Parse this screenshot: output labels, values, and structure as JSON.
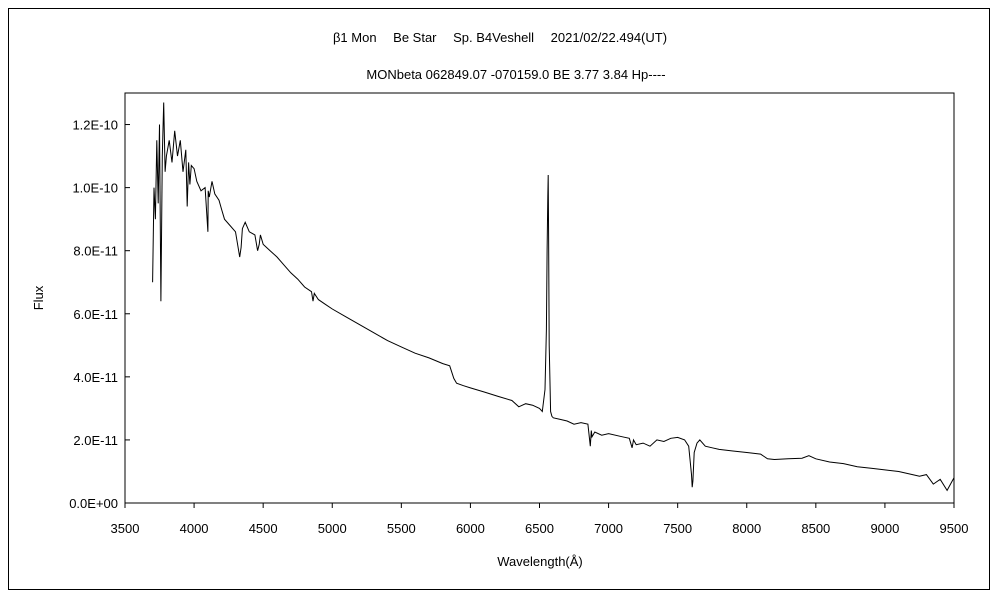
{
  "chart_data": {
    "type": "line",
    "title": "β1 Mon　 Be Star　 Sp. B4Veshell　 2021/02/22.494(UT)",
    "subtitle": "MONbeta 062849.07 -070159.0 BE 3.77 3.84 Hp----",
    "xlabel": "Wavelength(Å)",
    "ylabel": "Flux",
    "xlim": [
      3500,
      9500
    ],
    "ylim": [
      0,
      1.3e-10
    ],
    "x_ticks": [
      "3500",
      "4000",
      "4500",
      "5000",
      "5500",
      "6000",
      "6500",
      "7000",
      "7500",
      "8000",
      "8500",
      "9000",
      "9500"
    ],
    "y_ticks": [
      "0.0E+00",
      "2.0E-11",
      "4.0E-11",
      "6.0E-11",
      "8.0E-11",
      "1.0E-10",
      "1.2E-10"
    ],
    "grid": false,
    "series": [
      {
        "color": "#000000",
        "x": [
          3700,
          3710,
          3720,
          3730,
          3740,
          3750,
          3760,
          3770,
          3780,
          3790,
          3800,
          3820,
          3840,
          3860,
          3880,
          3900,
          3920,
          3940,
          3950,
          3960,
          3970,
          3980,
          4000,
          4020,
          4050,
          4080,
          4100,
          4102,
          4110,
          4130,
          4150,
          4180,
          4200,
          4220,
          4260,
          4300,
          4330,
          4340,
          4350,
          4370,
          4400,
          4440,
          4460,
          4471,
          4480,
          4500,
          4550,
          4600,
          4650,
          4700,
          4750,
          4800,
          4850,
          4861,
          4870,
          4900,
          4950,
          5000,
          5100,
          5200,
          5300,
          5400,
          5500,
          5600,
          5700,
          5800,
          5850,
          5880,
          5900,
          5950,
          6000,
          6100,
          6200,
          6300,
          6350,
          6400,
          6450,
          6500,
          6520,
          6540,
          6550,
          6555,
          6560,
          6563,
          6566,
          6570,
          6580,
          6590,
          6600,
          6650,
          6700,
          6750,
          6800,
          6850,
          6868,
          6875,
          6880,
          6900,
          6950,
          7000,
          7100,
          7150,
          7170,
          7180,
          7200,
          7250,
          7300,
          7350,
          7400,
          7450,
          7500,
          7550,
          7580,
          7600,
          7605,
          7610,
          7620,
          7640,
          7660,
          7700,
          7750,
          7800,
          7900,
          8000,
          8100,
          8150,
          8200,
          8300,
          8400,
          8450,
          8500,
          8600,
          8700,
          8800,
          8900,
          9000,
          9100,
          9200,
          9250,
          9300,
          9350,
          9400,
          9450,
          9500
        ],
        "y": [
          7e-11,
          1e-10,
          9e-11,
          1.15e-10,
          9.5e-11,
          1.2e-10,
          6.4e-11,
          1.1e-10,
          1.27e-10,
          1.05e-10,
          1.1e-10,
          1.15e-10,
          1.08e-10,
          1.18e-10,
          1.1e-10,
          1.15e-10,
          1.05e-10,
          1.12e-10,
          9.4e-11,
          1.08e-10,
          1.01e-10,
          1.07e-10,
          1.06e-10,
          1.02e-10,
          9.9e-11,
          1e-10,
          8.6e-11,
          9.9e-11,
          9.7e-11,
          1.02e-10,
          9.8e-11,
          9.6e-11,
          9.3e-11,
          9e-11,
          8.8e-11,
          8.6e-11,
          7.8e-11,
          8.1e-11,
          8.7e-11,
          8.9e-11,
          8.6e-11,
          8.5e-11,
          8e-11,
          8.2e-11,
          8.5e-11,
          8.2e-11,
          8e-11,
          7.8e-11,
          7.55e-11,
          7.3e-11,
          7.1e-11,
          6.85e-11,
          6.7e-11,
          6.4e-11,
          6.65e-11,
          6.45e-11,
          6.3e-11,
          6.15e-11,
          5.9e-11,
          5.65e-11,
          5.4e-11,
          5.15e-11,
          4.95e-11,
          4.75e-11,
          4.6e-11,
          4.42e-11,
          4.35e-11,
          3.95e-11,
          3.8e-11,
          3.72e-11,
          3.65e-11,
          3.52e-11,
          3.38e-11,
          3.25e-11,
          3.05e-11,
          3.15e-11,
          3.1e-11,
          3e-11,
          2.9e-11,
          3.6e-11,
          5.5e-11,
          8e-11,
          9.7e-11,
          1.04e-10,
          8.5e-11,
          5e-11,
          2.9e-11,
          2.75e-11,
          2.7e-11,
          2.65e-11,
          2.6e-11,
          2.5e-11,
          2.55e-11,
          2.5e-11,
          1.8e-11,
          2.3e-11,
          2.1e-11,
          2.25e-11,
          2.15e-11,
          2.2e-11,
          2.1e-11,
          2.05e-11,
          1.75e-11,
          2e-11,
          1.85e-11,
          1.9e-11,
          1.8e-11,
          2e-11,
          1.95e-11,
          2.05e-11,
          2.08e-11,
          2e-11,
          1.8e-11,
          9e-12,
          5e-12,
          7e-12,
          1.6e-11,
          1.9e-11,
          2e-11,
          1.8e-11,
          1.75e-11,
          1.7e-11,
          1.65e-11,
          1.6e-11,
          1.55e-11,
          1.4e-11,
          1.38e-11,
          1.4e-11,
          1.42e-11,
          1.5e-11,
          1.4e-11,
          1.3e-11,
          1.25e-11,
          1.15e-11,
          1.1e-11,
          1.05e-11,
          1e-11,
          9e-12,
          8.5e-12,
          9e-12,
          6e-12,
          7.5e-12,
          4e-12,
          8e-12
        ]
      }
    ]
  }
}
